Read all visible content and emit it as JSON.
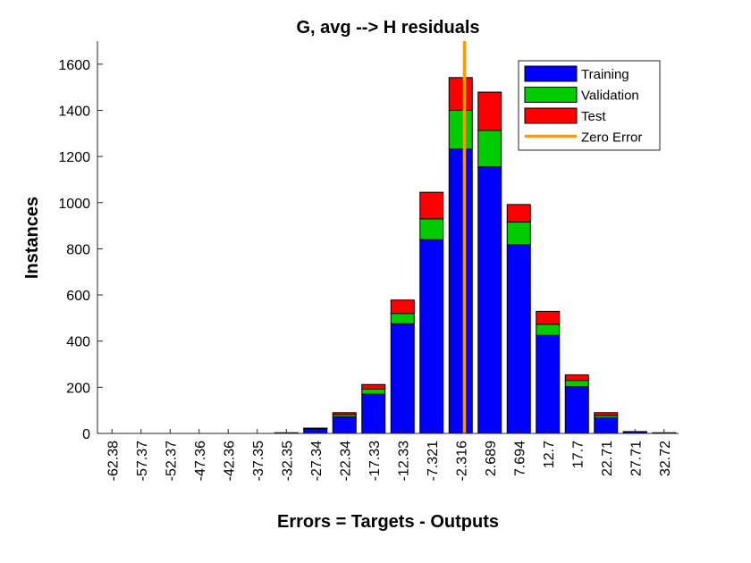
{
  "chart_data": {
    "type": "bar",
    "stacked": true,
    "title": "G, avg --> H residuals",
    "xlabel": "Errors = Targets - Outputs",
    "ylabel": "Instances",
    "ylim": [
      0,
      1700
    ],
    "yticks": [
      0,
      200,
      400,
      600,
      800,
      1000,
      1200,
      1400,
      1600
    ],
    "categories": [
      "-62.38",
      "-57.37",
      "-52.37",
      "-47.36",
      "-42.36",
      "-37.35",
      "-32.35",
      "-27.34",
      "-22.34",
      "-17.33",
      "-12.33",
      "-7.321",
      "-2.316",
      "2.689",
      "7.694",
      "12.7",
      "17.7",
      "22.71",
      "27.71",
      "32.72"
    ],
    "series": [
      {
        "name": "Training",
        "color": "#0000ff",
        "values": [
          0,
          0,
          0,
          0,
          0,
          0,
          3,
          20,
          72,
          170,
          475,
          840,
          1232,
          1155,
          818,
          425,
          202,
          68,
          6,
          3
        ]
      },
      {
        "name": "Validation",
        "color": "#00cc00",
        "values": [
          0,
          0,
          0,
          0,
          0,
          0,
          0,
          2,
          10,
          22,
          45,
          90,
          168,
          158,
          98,
          48,
          28,
          10,
          1,
          0
        ]
      },
      {
        "name": "Test",
        "color": "#ff0000",
        "values": [
          0,
          0,
          0,
          0,
          0,
          0,
          0,
          1,
          8,
          20,
          58,
          115,
          142,
          166,
          76,
          56,
          24,
          12,
          1,
          0
        ]
      }
    ],
    "zero_error": {
      "name": "Zero Error",
      "color": "#ff9900",
      "x_category_position": 12.63
    },
    "legend_position": "top-right",
    "grid": false
  }
}
